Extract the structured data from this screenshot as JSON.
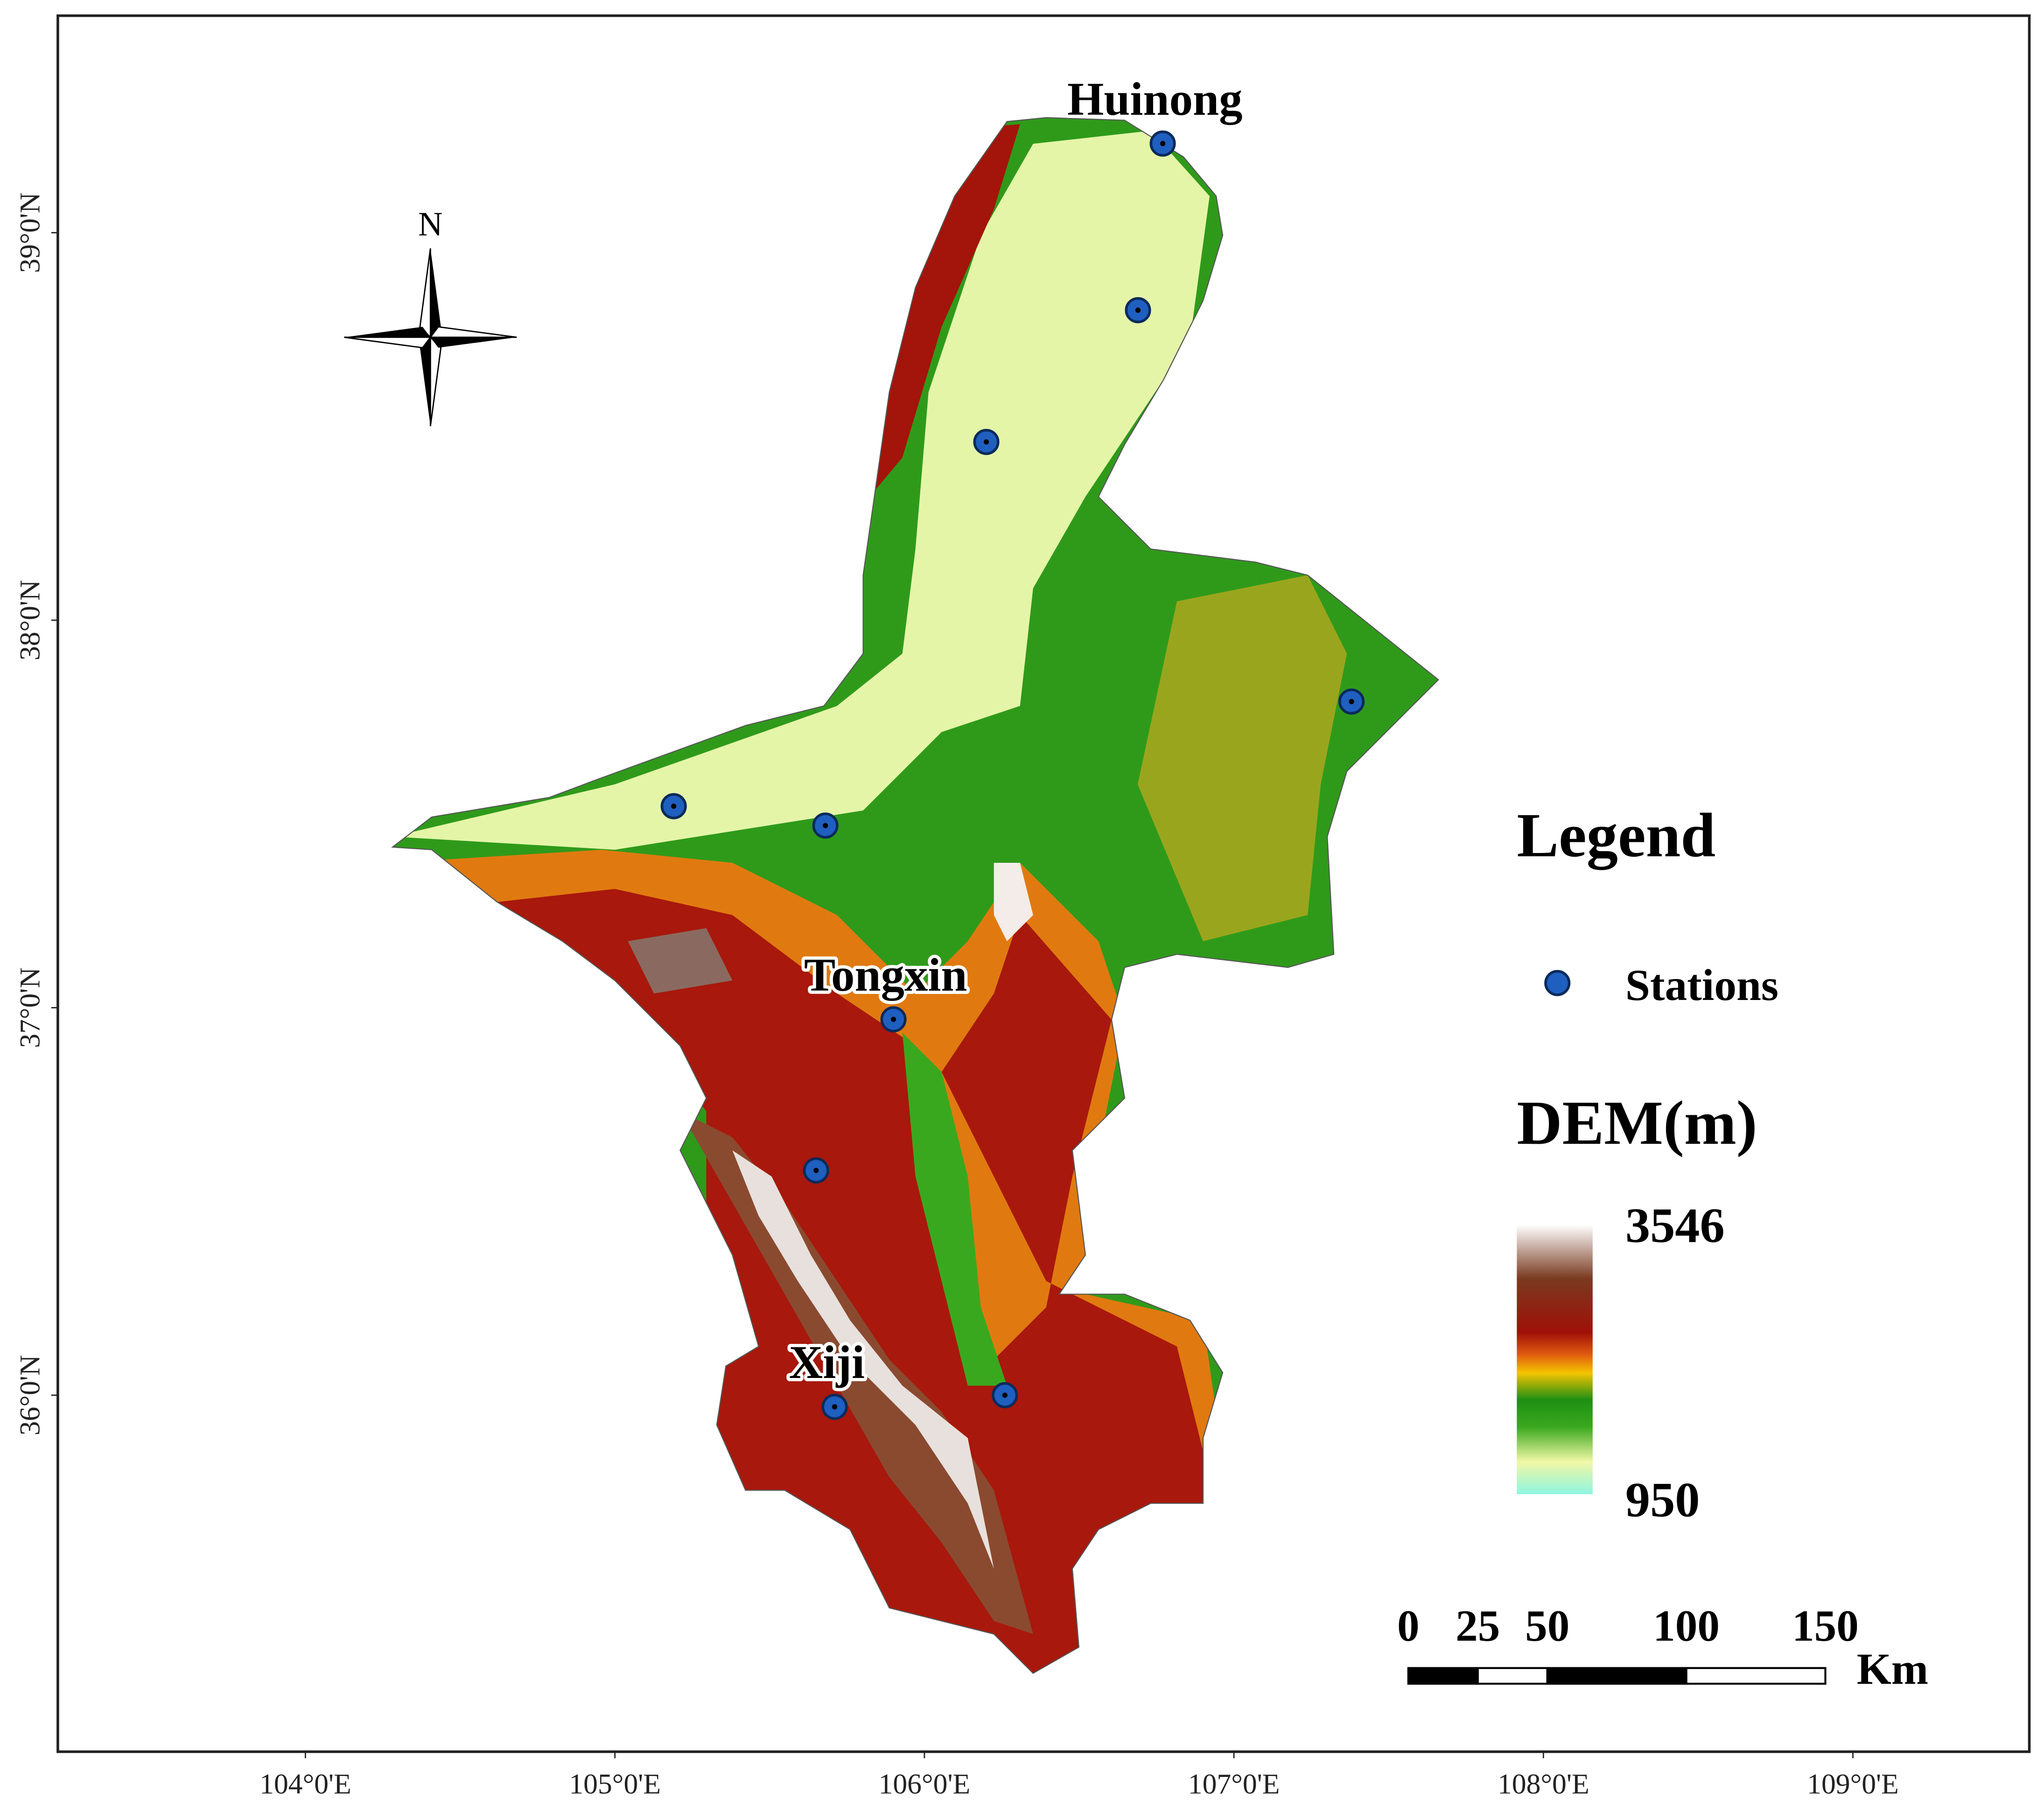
{
  "map": {
    "xlim": [
      103.2,
      109.57
    ],
    "ylim": [
      35.08,
      39.56
    ],
    "xticks": [
      {
        "value": 104,
        "label": "104°0'E"
      },
      {
        "value": 105,
        "label": "105°0'E"
      },
      {
        "value": 106,
        "label": "106°0'E"
      },
      {
        "value": 107,
        "label": "107°0'E"
      },
      {
        "value": 108,
        "label": "108°0'E"
      },
      {
        "value": 109,
        "label": "109°0'E"
      }
    ],
    "yticks": [
      {
        "value": 36,
        "label": "36°0'N"
      },
      {
        "value": 37,
        "label": "37°0'N"
      },
      {
        "value": 38,
        "label": "38°0'N"
      },
      {
        "value": 39,
        "label": "39°0'N"
      }
    ],
    "north": "N",
    "stations": [
      {
        "lon": 106.77,
        "lat": 39.23,
        "name": "Huinong"
      },
      {
        "lon": 106.69,
        "lat": 38.8
      },
      {
        "lon": 106.2,
        "lat": 38.46
      },
      {
        "lon": 107.38,
        "lat": 37.79
      },
      {
        "lon": 105.19,
        "lat": 37.52
      },
      {
        "lon": 105.68,
        "lat": 37.47
      },
      {
        "lon": 105.9,
        "lat": 36.97,
        "name": "Tongxin"
      },
      {
        "lon": 105.65,
        "lat": 36.58
      },
      {
        "lon": 105.71,
        "lat": 35.97,
        "name": "Xiji"
      },
      {
        "lon": 106.26,
        "lat": 36.0
      }
    ],
    "legend": {
      "title": "Legend",
      "stations_label": "Stations",
      "dem_title": "DEM(m)",
      "dem_max": 3546,
      "dem_min": 950
    },
    "scale_bar": {
      "ticks": [
        0,
        25,
        50,
        100,
        150
      ],
      "unit": "Km"
    }
  }
}
